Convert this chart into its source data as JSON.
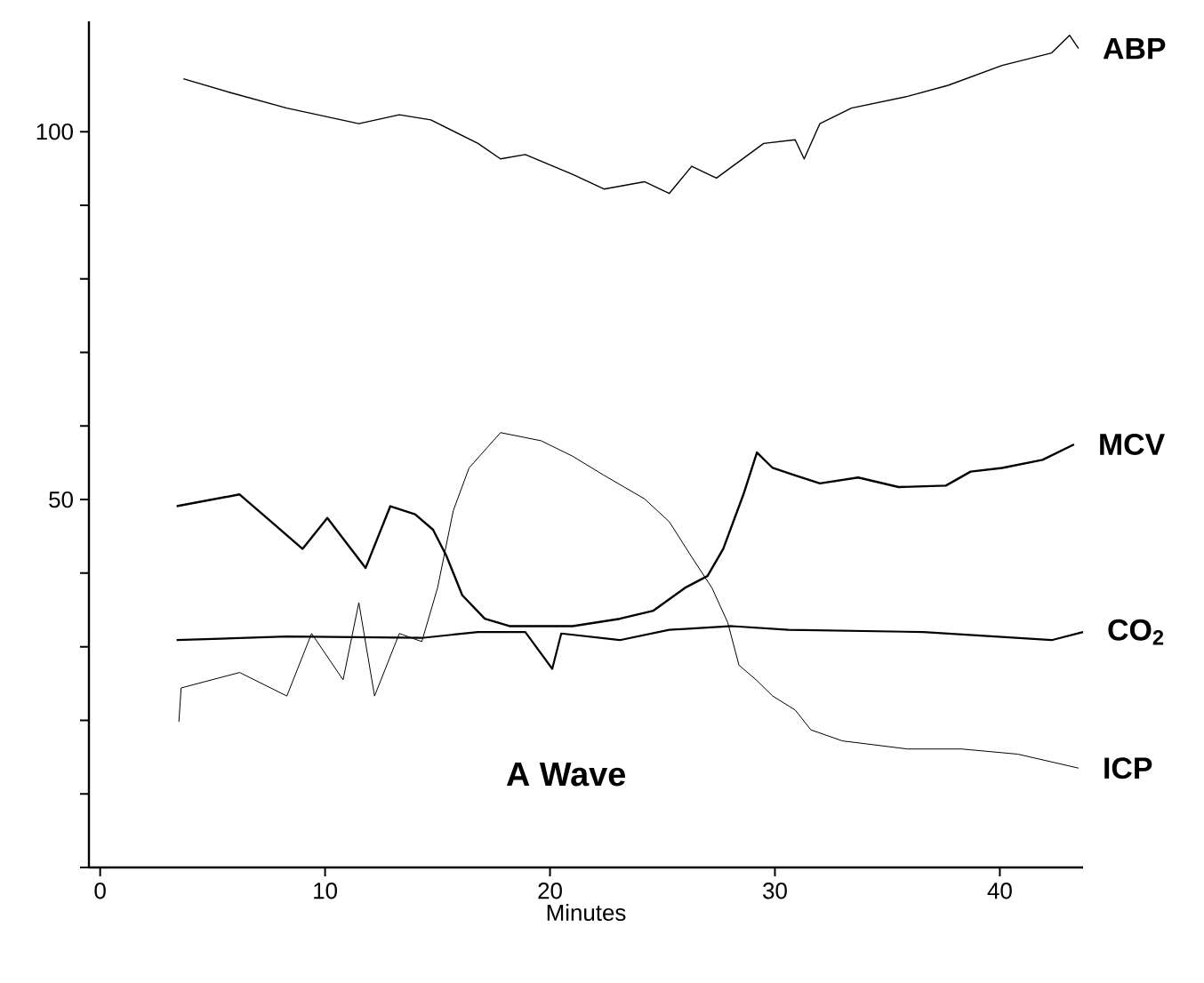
{
  "chart_data": {
    "type": "line",
    "xlabel": "Minutes",
    "annotations": [
      "A Wave"
    ],
    "xlim": [
      -0.5,
      43.7
    ],
    "xticks": [
      0,
      10,
      20,
      30,
      40
    ],
    "ylim": [
      0,
      115
    ],
    "yticks": [
      {
        "value": 0,
        "label": null
      },
      {
        "value": 10,
        "label": null
      },
      {
        "value": 20,
        "label": null
      },
      {
        "value": 30,
        "label": null
      },
      {
        "value": 40,
        "label": null
      },
      50,
      {
        "value": 60,
        "label": null
      },
      {
        "value": 70,
        "label": null
      },
      {
        "value": 80,
        "label": null
      },
      {
        "value": 90,
        "label": null
      },
      100
    ],
    "grid": false,
    "legend": false,
    "marker": "none",
    "line_style": "solid",
    "series": [
      {
        "name": "ABP",
        "color": "#000000",
        "x": [
          3.7,
          5.8,
          8.3,
          11.5,
          13.3,
          14.7,
          16.8,
          17.8,
          18.9,
          21.0,
          22.4,
          24.2,
          25.3,
          26.3,
          27.4,
          29.5,
          30.9,
          31.3,
          32.0,
          33.4,
          35.9,
          37.7,
          40.1,
          42.3,
          43.1,
          43.5
        ],
        "values": [
          107.2,
          105.3,
          103.2,
          101.1,
          102.3,
          101.6,
          98.4,
          96.3,
          96.9,
          94.2,
          92.2,
          93.2,
          91.6,
          95.3,
          93.7,
          98.4,
          98.9,
          96.3,
          101.1,
          103.2,
          104.8,
          106.3,
          109.0,
          110.7,
          113.1,
          111.3
        ]
      },
      {
        "name": "MCV",
        "color": "#000000",
        "x": [
          3.4,
          6.2,
          7.6,
          9.0,
          10.1,
          11.8,
          12.9,
          14.0,
          14.8,
          15.4,
          16.1,
          17.1,
          18.2,
          21.0,
          23.1,
          24.6,
          26.0,
          27.0,
          27.7,
          28.6,
          29.2,
          29.9,
          30.9,
          32.0,
          33.7,
          35.5,
          37.6,
          38.7,
          40.1,
          41.9,
          43.3
        ],
        "values": [
          49.1,
          50.7,
          47.0,
          43.3,
          47.5,
          40.7,
          49.1,
          48.0,
          45.9,
          42.3,
          37.0,
          33.8,
          32.8,
          32.8,
          33.8,
          34.9,
          38.0,
          39.6,
          43.3,
          50.7,
          56.4,
          54.3,
          53.3,
          52.2,
          53.0,
          51.7,
          51.9,
          53.8,
          54.3,
          55.4,
          57.5
        ]
      },
      {
        "name": "CO$_{2}$",
        "color": "#000000",
        "x": [
          3.4,
          8.3,
          14.3,
          16.8,
          18.9,
          20.1,
          20.5,
          23.1,
          25.3,
          28.1,
          30.6,
          36.6,
          42.3,
          43.7
        ],
        "values": [
          30.9,
          31.4,
          31.2,
          32.0,
          32.0,
          27.0,
          31.8,
          30.9,
          32.3,
          32.8,
          32.3,
          32.0,
          30.9,
          32.0
        ]
      },
      {
        "name": "ICP",
        "color": "#000000",
        "x": [
          3.5,
          3.6,
          6.2,
          8.3,
          9.4,
          10.8,
          11.5,
          12.2,
          13.3,
          14.3,
          15.0,
          15.7,
          16.4,
          17.8,
          19.6,
          21.0,
          22.4,
          24.2,
          25.3,
          26.3,
          27.2,
          27.9,
          28.4,
          29.2,
          29.9,
          30.9,
          31.6,
          33.0,
          35.9,
          38.3,
          40.8,
          43.5
        ],
        "values": [
          19.8,
          24.4,
          26.5,
          23.3,
          31.8,
          25.5,
          36.0,
          23.3,
          31.8,
          30.7,
          38.0,
          48.5,
          54.3,
          59.1,
          58.0,
          55.9,
          53.3,
          50.1,
          47.0,
          42.2,
          38.0,
          33.3,
          27.5,
          25.4,
          23.3,
          21.4,
          18.7,
          17.2,
          16.1,
          16.1,
          15.4,
          13.5
        ]
      }
    ]
  }
}
